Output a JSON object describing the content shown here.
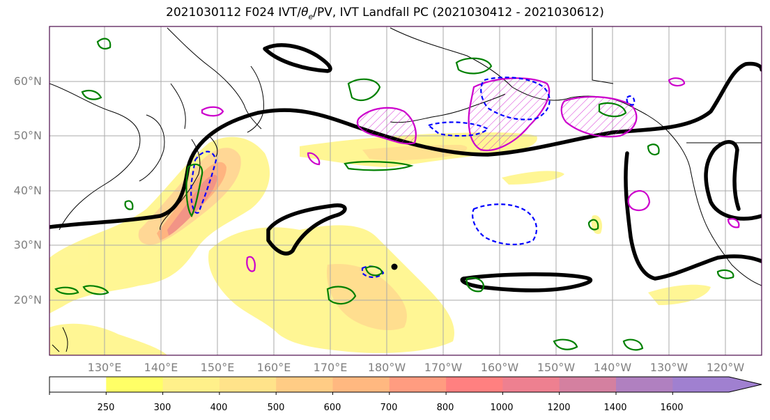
{
  "title_parts": {
    "prefix": "2021030112 F024 IVT/",
    "theta": "θ",
    "theta_sub": "e",
    "suffix": "/PV, IVT Landfall PC (2021030412 - 2021030612)"
  },
  "map": {
    "lat_labels": [
      "60°N",
      "50°N",
      "40°N",
      "30°N",
      "20°N"
    ],
    "lon_labels": [
      "130°E",
      "140°E",
      "150°E",
      "160°E",
      "170°E",
      "180°W",
      "170°W",
      "160°W",
      "150°W",
      "140°W",
      "130°W",
      "120°W"
    ],
    "gridline_color": "#aaaaaa",
    "frame_color": "#4b0a4b",
    "contour_colors": {
      "thetae_pc": "#000000",
      "pv_positive": "#008000",
      "pv_negative": "#0000ff",
      "ivt_pc": "#cc00cc"
    }
  },
  "colorbar": {
    "levels": [
      "250",
      "300",
      "400",
      "500",
      "600",
      "700",
      "800",
      "1000",
      "1200",
      "1400",
      "1600"
    ],
    "colors": [
      "#ffffff",
      "#ffff66",
      "#fff08a",
      "#ffe38a",
      "#ffcc85",
      "#ffb880",
      "#ff9c80",
      "#ff8080",
      "#ee8090",
      "#d480a0",
      "#b080c0",
      "#a080d0"
    ]
  }
}
